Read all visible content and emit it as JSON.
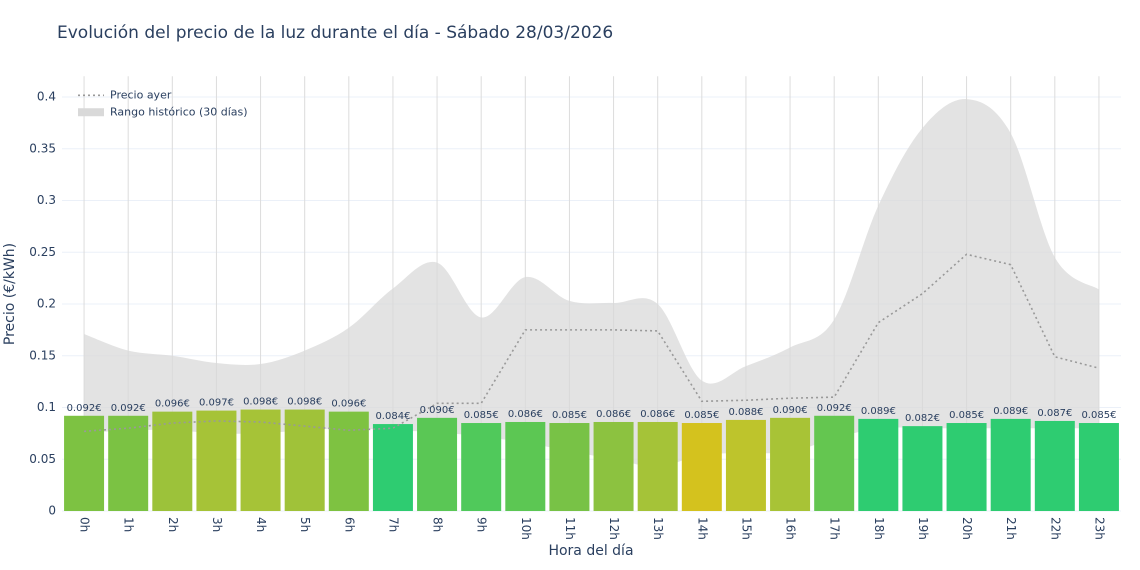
{
  "chart_data": {
    "type": "bar",
    "title": "Evolución del precio de la luz durante el día - Sábado 28/03/2026",
    "x_label": "Hora del día",
    "y_label": "Precio (€/kWh)",
    "categories": [
      "0h",
      "1h",
      "2h",
      "3h",
      "4h",
      "5h",
      "6h",
      "7h",
      "8h",
      "9h",
      "10h",
      "11h",
      "12h",
      "13h",
      "14h",
      "15h",
      "16h",
      "17h",
      "18h",
      "19h",
      "20h",
      "21h",
      "22h",
      "23h"
    ],
    "values": [
      0.092,
      0.092,
      0.096,
      0.097,
      0.098,
      0.098,
      0.096,
      0.084,
      0.09,
      0.085,
      0.086,
      0.085,
      0.086,
      0.086,
      0.085,
      0.088,
      0.09,
      0.092,
      0.089,
      0.082,
      0.085,
      0.089,
      0.087,
      0.085
    ],
    "value_labels": [
      "0.092€",
      "0.092€",
      "0.096€",
      "0.097€",
      "0.098€",
      "0.098€",
      "0.096€",
      "0.084€",
      "0.090€",
      "0.085€",
      "0.086€",
      "0.085€",
      "0.086€",
      "0.086€",
      "0.085€",
      "0.088€",
      "0.090€",
      "0.092€",
      "0.089€",
      "0.082€",
      "0.085€",
      "0.089€",
      "0.087€",
      "0.085€"
    ],
    "colors": [
      "#7dc242",
      "#7bc243",
      "#9cc23a",
      "#a6c337",
      "#a6c337",
      "#a0c239",
      "#7ec241",
      "#2ecc71",
      "#5ac755",
      "#50c95b",
      "#5cc753",
      "#78c246",
      "#8cc240",
      "#a5c338",
      "#d4c21e",
      "#bec42c",
      "#a8c336",
      "#64c650",
      "#2ecc71",
      "#2ecc71",
      "#2ecc71",
      "#2ecc71",
      "#2ecc71",
      "#2ecc71"
    ],
    "line": {
      "name": "Precio ayer",
      "color": "#999999",
      "values": [
        0.077,
        0.08,
        0.085,
        0.087,
        0.086,
        0.082,
        0.078,
        0.08,
        0.104,
        0.104,
        0.175,
        0.175,
        0.175,
        0.174,
        0.106,
        0.107,
        0.109,
        0.11,
        0.182,
        0.21,
        0.248,
        0.238,
        0.149,
        0.138
      ]
    },
    "range": {
      "name": "Rango histórico (30 días)",
      "color": "#d9d9d9",
      "upper": [
        0.171,
        0.155,
        0.15,
        0.143,
        0.142,
        0.155,
        0.177,
        0.215,
        0.24,
        0.187,
        0.226,
        0.203,
        0.201,
        0.2,
        0.126,
        0.14,
        0.158,
        0.185,
        0.295,
        0.37,
        0.398,
        0.365,
        0.245,
        0.214
      ],
      "lower": [
        0.075,
        0.078,
        0.078,
        0.075,
        0.075,
        0.078,
        0.08,
        0.078,
        0.076,
        0.072,
        0.066,
        0.058,
        0.05,
        0.043,
        0.054,
        0.056,
        0.057,
        0.07,
        0.08,
        0.08,
        0.08,
        0.08,
        0.08,
        0.08
      ]
    },
    "ylim": [
      0,
      0.42
    ],
    "yticks": [
      0,
      0.05,
      0.1,
      0.15,
      0.2,
      0.25,
      0.3,
      0.35,
      0.4
    ],
    "grid": true,
    "legend": "top-left"
  }
}
